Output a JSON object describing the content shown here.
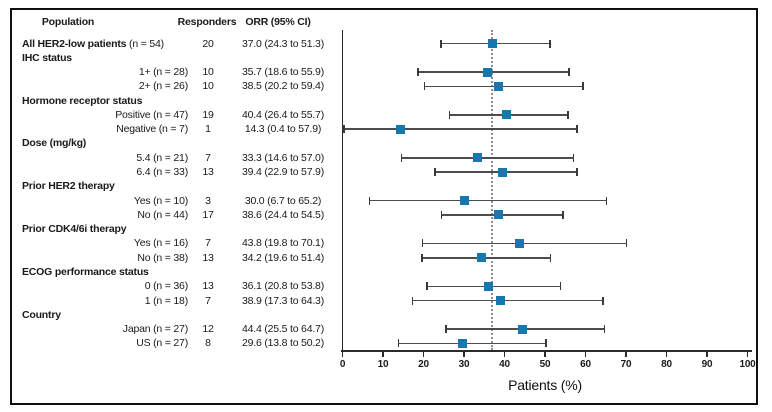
{
  "table": {
    "columns": {
      "population": "Population",
      "responders": "Responders",
      "orr": "ORR (95% CI)"
    }
  },
  "axis": {
    "xlabel": "Patients (%)",
    "ticks": [
      0,
      10,
      20,
      30,
      40,
      50,
      60,
      70,
      80,
      90,
      100
    ],
    "min": 0,
    "max": 100
  },
  "reference_line_x": 37.0,
  "colors": {
    "marker": "#1778b0",
    "ci_line": "#4d4d4d",
    "axis": "#2a2a2a",
    "reference_line": "#8f8f8f",
    "border": "#0f0f0f",
    "text": "#1a1a1a"
  },
  "rows": [
    {
      "type": "overall",
      "label_bold": "All HER2-low patients",
      "label_plain": " (n = 54)",
      "responders": "20",
      "orr": "37.0 (24.3 to 51.3)",
      "est": 37.0,
      "lo": 24.3,
      "hi": 51.3
    },
    {
      "type": "group",
      "label": "IHC status"
    },
    {
      "type": "item",
      "label": "1+ (n = 28)",
      "responders": "10",
      "orr": "35.7 (18.6 to 55.9)",
      "est": 35.7,
      "lo": 18.6,
      "hi": 55.9
    },
    {
      "type": "item",
      "label": "2+ (n = 26)",
      "responders": "10",
      "orr": "38.5 (20.2 to 59.4)",
      "est": 38.5,
      "lo": 20.2,
      "hi": 59.4
    },
    {
      "type": "group",
      "label": "Hormone receptor status"
    },
    {
      "type": "item",
      "label": "Positive (n = 47)",
      "responders": "19",
      "orr": "40.4 (26.4 to 55.7)",
      "est": 40.4,
      "lo": 26.4,
      "hi": 55.7
    },
    {
      "type": "item",
      "label": "Negative (n = 7)",
      "responders": "1",
      "orr": "14.3 (0.4 to 57.9)",
      "est": 14.3,
      "lo": 0.4,
      "hi": 57.9
    },
    {
      "type": "group",
      "label": "Dose (mg/kg)"
    },
    {
      "type": "item",
      "label": "5.4 (n = 21)",
      "responders": "7",
      "orr": "33.3 (14.6 to 57.0)",
      "est": 33.3,
      "lo": 14.6,
      "hi": 57.0
    },
    {
      "type": "item",
      "label": "6.4 (n = 33)",
      "responders": "13",
      "orr": "39.4 (22.9 to 57.9)",
      "est": 39.4,
      "lo": 22.9,
      "hi": 57.9
    },
    {
      "type": "group",
      "label": "Prior HER2 therapy"
    },
    {
      "type": "item",
      "label": "Yes (n = 10)",
      "responders": "3",
      "orr": "30.0 (6.7 to 65.2)",
      "est": 30.0,
      "lo": 6.7,
      "hi": 65.2
    },
    {
      "type": "item",
      "label": "No (n = 44)",
      "responders": "17",
      "orr": "38.6 (24.4 to 54.5)",
      "est": 38.6,
      "lo": 24.4,
      "hi": 54.5
    },
    {
      "type": "group",
      "label": "Prior CDK4/6i therapy"
    },
    {
      "type": "item",
      "label": "Yes (n = 16)",
      "responders": "7",
      "orr": "43.8 (19.8 to 70.1)",
      "est": 43.8,
      "lo": 19.8,
      "hi": 70.1
    },
    {
      "type": "item",
      "label": "No (n = 38)",
      "responders": "13",
      "orr": "34.2 (19.6 to 51.4)",
      "est": 34.2,
      "lo": 19.6,
      "hi": 51.4
    },
    {
      "type": "group",
      "label": "ECOG performance status"
    },
    {
      "type": "item",
      "label": "0 (n = 36)",
      "responders": "13",
      "orr": "36.1 (20.8 to 53.8)",
      "est": 36.1,
      "lo": 20.8,
      "hi": 53.8
    },
    {
      "type": "item",
      "label": "1 (n = 18)",
      "responders": "7",
      "orr": "38.9 (17.3 to 64.3)",
      "est": 38.9,
      "lo": 17.3,
      "hi": 64.3
    },
    {
      "type": "group",
      "label": "Country"
    },
    {
      "type": "item",
      "label": "Japan (n = 27)",
      "responders": "12",
      "orr": "44.4 (25.5 to 64.7)",
      "est": 44.4,
      "lo": 25.5,
      "hi": 64.7
    },
    {
      "type": "item",
      "label": "US (n = 27)",
      "responders": "8",
      "orr": "29.6 (13.8 to 50.2)",
      "est": 29.6,
      "lo": 13.8,
      "hi": 50.2
    }
  ],
  "chart_data": {
    "type": "scatter",
    "variant": "forest-plot",
    "title": "",
    "xlabel": "Patients (%)",
    "ylabel": "",
    "xlim": [
      0,
      100
    ],
    "x_ticks": [
      0,
      10,
      20,
      30,
      40,
      50,
      60,
      70,
      80,
      90,
      100
    ],
    "grid": false,
    "reference_line_x": 37.0,
    "series": [
      {
        "name": "ORR (95% CI)",
        "points": [
          {
            "label": "All HER2-low patients (n = 54)",
            "group": null,
            "responders": 20,
            "est": 37.0,
            "lo": 24.3,
            "hi": 51.3
          },
          {
            "label": "1+ (n = 28)",
            "group": "IHC status",
            "responders": 10,
            "est": 35.7,
            "lo": 18.6,
            "hi": 55.9
          },
          {
            "label": "2+ (n = 26)",
            "group": "IHC status",
            "responders": 10,
            "est": 38.5,
            "lo": 20.2,
            "hi": 59.4
          },
          {
            "label": "Positive (n = 47)",
            "group": "Hormone receptor status",
            "responders": 19,
            "est": 40.4,
            "lo": 26.4,
            "hi": 55.7
          },
          {
            "label": "Negative (n = 7)",
            "group": "Hormone receptor status",
            "responders": 1,
            "est": 14.3,
            "lo": 0.4,
            "hi": 57.9
          },
          {
            "label": "5.4 (n = 21)",
            "group": "Dose (mg/kg)",
            "responders": 7,
            "est": 33.3,
            "lo": 14.6,
            "hi": 57.0
          },
          {
            "label": "6.4 (n = 33)",
            "group": "Dose (mg/kg)",
            "responders": 13,
            "est": 39.4,
            "lo": 22.9,
            "hi": 57.9
          },
          {
            "label": "Yes (n = 10)",
            "group": "Prior HER2 therapy",
            "responders": 3,
            "est": 30.0,
            "lo": 6.7,
            "hi": 65.2
          },
          {
            "label": "No (n = 44)",
            "group": "Prior HER2 therapy",
            "responders": 17,
            "est": 38.6,
            "lo": 24.4,
            "hi": 54.5
          },
          {
            "label": "Yes (n = 16)",
            "group": "Prior CDK4/6i therapy",
            "responders": 7,
            "est": 43.8,
            "lo": 19.8,
            "hi": 70.1
          },
          {
            "label": "No (n = 38)",
            "group": "Prior CDK4/6i therapy",
            "responders": 13,
            "est": 34.2,
            "lo": 19.6,
            "hi": 51.4
          },
          {
            "label": "0 (n = 36)",
            "group": "ECOG performance status",
            "responders": 13,
            "est": 36.1,
            "lo": 20.8,
            "hi": 53.8
          },
          {
            "label": "1 (n = 18)",
            "group": "ECOG performance status",
            "responders": 7,
            "est": 38.9,
            "lo": 17.3,
            "hi": 64.3
          },
          {
            "label": "Japan (n = 27)",
            "group": "Country",
            "responders": 12,
            "est": 44.4,
            "lo": 25.5,
            "hi": 64.7
          },
          {
            "label": "US (n = 27)",
            "group": "Country",
            "responders": 8,
            "est": 29.6,
            "lo": 13.8,
            "hi": 50.2
          }
        ]
      }
    ]
  }
}
